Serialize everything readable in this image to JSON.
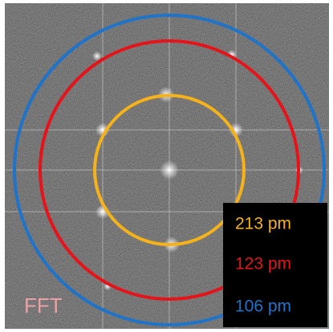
{
  "label": "FFT",
  "rings": [
    {
      "label": "213 pm",
      "color": "#f5b21a"
    },
    {
      "label": "123 pm",
      "color": "#e5141b"
    },
    {
      "label": "106 pm",
      "color": "#1f73c8"
    }
  ]
}
